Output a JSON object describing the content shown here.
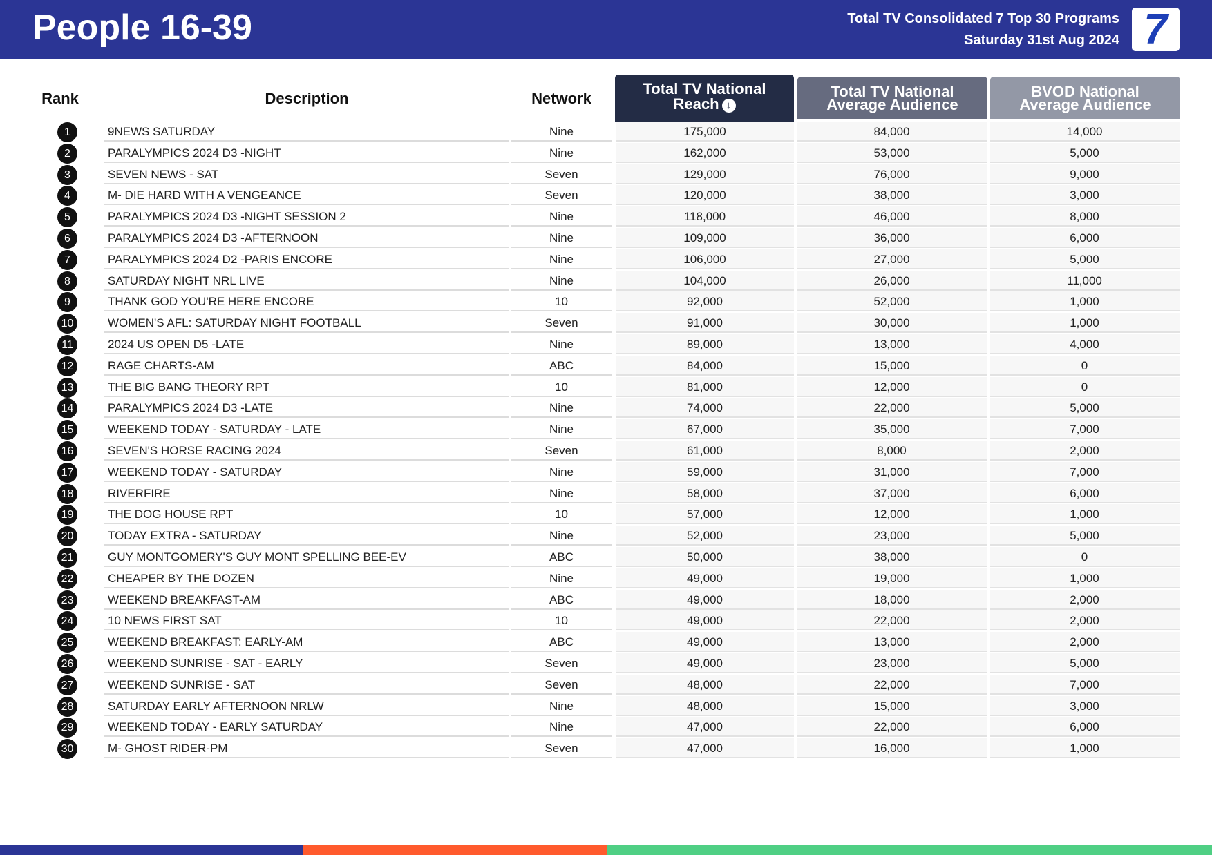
{
  "header": {
    "title": "People 16-39",
    "subtitle_line1": "Total TV Consolidated 7 Top 30 Programs",
    "subtitle_line2": "Saturday 31st Aug 2024",
    "logo_text": "7"
  },
  "columns": {
    "rank": "Rank",
    "description": "Description",
    "network": "Network",
    "reach_line1": "Total TV National",
    "reach_line2": "Reach",
    "avg_line1": "Total TV National",
    "avg_line2": "Average Audience",
    "bvod_line1": "BVOD National",
    "bvod_line2": "Average Audience"
  },
  "rows": [
    {
      "rank": "1",
      "description": "9NEWS SATURDAY",
      "network": "Nine",
      "reach": "175,000",
      "avg": "84,000",
      "bvod": "14,000"
    },
    {
      "rank": "2",
      "description": "PARALYMPICS 2024 D3 -NIGHT",
      "network": "Nine",
      "reach": "162,000",
      "avg": "53,000",
      "bvod": "5,000"
    },
    {
      "rank": "3",
      "description": "SEVEN NEWS - SAT",
      "network": "Seven",
      "reach": "129,000",
      "avg": "76,000",
      "bvod": "9,000"
    },
    {
      "rank": "4",
      "description": "M- DIE HARD WITH A VENGEANCE",
      "network": "Seven",
      "reach": "120,000",
      "avg": "38,000",
      "bvod": "3,000"
    },
    {
      "rank": "5",
      "description": "PARALYMPICS 2024 D3 -NIGHT SESSION 2",
      "network": "Nine",
      "reach": "118,000",
      "avg": "46,000",
      "bvod": "8,000"
    },
    {
      "rank": "6",
      "description": "PARALYMPICS 2024 D3 -AFTERNOON",
      "network": "Nine",
      "reach": "109,000",
      "avg": "36,000",
      "bvod": "6,000"
    },
    {
      "rank": "7",
      "description": "PARALYMPICS 2024 D2 -PARIS ENCORE",
      "network": "Nine",
      "reach": "106,000",
      "avg": "27,000",
      "bvod": "5,000"
    },
    {
      "rank": "8",
      "description": "SATURDAY NIGHT NRL LIVE",
      "network": "Nine",
      "reach": "104,000",
      "avg": "26,000",
      "bvod": "11,000"
    },
    {
      "rank": "9",
      "description": "THANK GOD YOU'RE HERE ENCORE",
      "network": "10",
      "reach": "92,000",
      "avg": "52,000",
      "bvod": "1,000"
    },
    {
      "rank": "10",
      "description": "WOMEN'S AFL: SATURDAY NIGHT FOOTBALL",
      "network": "Seven",
      "reach": "91,000",
      "avg": "30,000",
      "bvod": "1,000"
    },
    {
      "rank": "11",
      "description": "2024 US OPEN D5 -LATE",
      "network": "Nine",
      "reach": "89,000",
      "avg": "13,000",
      "bvod": "4,000"
    },
    {
      "rank": "12",
      "description": "RAGE CHARTS-AM",
      "network": "ABC",
      "reach": "84,000",
      "avg": "15,000",
      "bvod": "0"
    },
    {
      "rank": "13",
      "description": "THE BIG BANG THEORY RPT",
      "network": "10",
      "reach": "81,000",
      "avg": "12,000",
      "bvod": "0"
    },
    {
      "rank": "14",
      "description": "PARALYMPICS 2024 D3 -LATE",
      "network": "Nine",
      "reach": "74,000",
      "avg": "22,000",
      "bvod": "5,000"
    },
    {
      "rank": "15",
      "description": "WEEKEND TODAY - SATURDAY - LATE",
      "network": "Nine",
      "reach": "67,000",
      "avg": "35,000",
      "bvod": "7,000"
    },
    {
      "rank": "16",
      "description": "SEVEN'S HORSE RACING 2024",
      "network": "Seven",
      "reach": "61,000",
      "avg": "8,000",
      "bvod": "2,000"
    },
    {
      "rank": "17",
      "description": "WEEKEND TODAY - SATURDAY",
      "network": "Nine",
      "reach": "59,000",
      "avg": "31,000",
      "bvod": "7,000"
    },
    {
      "rank": "18",
      "description": "RIVERFIRE",
      "network": "Nine",
      "reach": "58,000",
      "avg": "37,000",
      "bvod": "6,000"
    },
    {
      "rank": "19",
      "description": "THE DOG HOUSE RPT",
      "network": "10",
      "reach": "57,000",
      "avg": "12,000",
      "bvod": "1,000"
    },
    {
      "rank": "20",
      "description": "TODAY EXTRA - SATURDAY",
      "network": "Nine",
      "reach": "52,000",
      "avg": "23,000",
      "bvod": "5,000"
    },
    {
      "rank": "21",
      "description": "GUY MONTGOMERY'S GUY MONT SPELLING BEE-EV",
      "network": "ABC",
      "reach": "50,000",
      "avg": "38,000",
      "bvod": "0"
    },
    {
      "rank": "22",
      "description": "CHEAPER BY THE DOZEN",
      "network": "Nine",
      "reach": "49,000",
      "avg": "19,000",
      "bvod": "1,000"
    },
    {
      "rank": "23",
      "description": "WEEKEND BREAKFAST-AM",
      "network": "ABC",
      "reach": "49,000",
      "avg": "18,000",
      "bvod": "2,000"
    },
    {
      "rank": "24",
      "description": "10 NEWS FIRST SAT",
      "network": "10",
      "reach": "49,000",
      "avg": "22,000",
      "bvod": "2,000"
    },
    {
      "rank": "25",
      "description": "WEEKEND BREAKFAST: EARLY-AM",
      "network": "ABC",
      "reach": "49,000",
      "avg": "13,000",
      "bvod": "2,000"
    },
    {
      "rank": "26",
      "description": "WEEKEND SUNRISE - SAT - EARLY",
      "network": "Seven",
      "reach": "49,000",
      "avg": "23,000",
      "bvod": "5,000"
    },
    {
      "rank": "27",
      "description": "WEEKEND SUNRISE - SAT",
      "network": "Seven",
      "reach": "48,000",
      "avg": "22,000",
      "bvod": "7,000"
    },
    {
      "rank": "28",
      "description": "SATURDAY EARLY AFTERNOON NRLW",
      "network": "Nine",
      "reach": "48,000",
      "avg": "15,000",
      "bvod": "3,000"
    },
    {
      "rank": "29",
      "description": "WEEKEND TODAY - EARLY SATURDAY",
      "network": "Nine",
      "reach": "47,000",
      "avg": "22,000",
      "bvod": "6,000"
    },
    {
      "rank": "30",
      "description": "M- GHOST RIDER-PM",
      "network": "Seven",
      "reach": "47,000",
      "avg": "16,000",
      "bvod": "1,000"
    }
  ],
  "colors": {
    "brand_blue": "#2b3595",
    "reach_header": "#232c45",
    "avg_header": "#666b7f",
    "bvod_header": "#9398a6",
    "footer_orange": "#ff5a2d",
    "footer_green": "#4fcf84"
  },
  "icons": {
    "sort_indicator": "arrow-down-circle-icon",
    "logo": "channel-seven-logo"
  }
}
